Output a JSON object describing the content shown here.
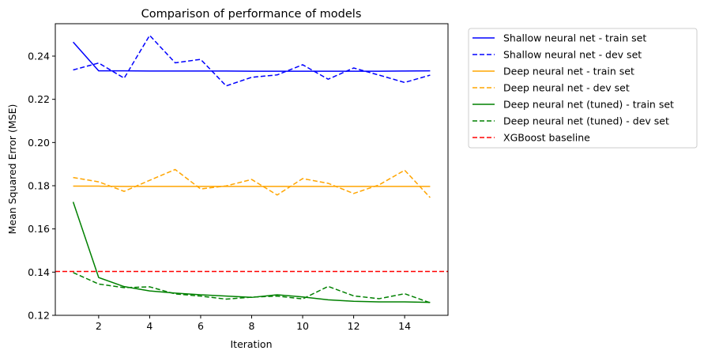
{
  "chart_data": {
    "type": "line",
    "title": "Comparison of performance of models",
    "xlabel": "Iteration",
    "ylabel": "Mean Squared Error (MSE)",
    "xlim": [
      0.3,
      15.7
    ],
    "ylim": [
      0.12,
      0.255
    ],
    "xticks": [
      2,
      4,
      6,
      8,
      10,
      12,
      14
    ],
    "yticks": [
      0.12,
      0.14,
      0.16,
      0.18,
      0.2,
      0.22,
      0.24
    ],
    "ytick_labels": [
      "0.12",
      "0.14",
      "0.16",
      "0.18",
      "0.20",
      "0.22",
      "0.24"
    ],
    "grid": false,
    "legend_position": "outside-right-top",
    "x": [
      1,
      2,
      3,
      4,
      5,
      6,
      7,
      8,
      9,
      10,
      11,
      12,
      13,
      14,
      15
    ],
    "series": [
      {
        "name": "Shallow neural net - train set",
        "color": "#0000ff",
        "dash": "solid",
        "values": [
          0.2465,
          0.2332,
          0.2332,
          0.2331,
          0.2331,
          0.2331,
          0.2331,
          0.233,
          0.233,
          0.233,
          0.233,
          0.233,
          0.233,
          0.2331,
          0.2332
        ]
      },
      {
        "name": "Shallow neural net - dev set",
        "color": "#0000ff",
        "dash": "dashed",
        "values": [
          0.2336,
          0.2368,
          0.2298,
          0.2496,
          0.2369,
          0.2385,
          0.2262,
          0.2302,
          0.2313,
          0.236,
          0.2293,
          0.2345,
          0.2312,
          0.2278,
          0.2312
        ]
      },
      {
        "name": "Deep neural net - train set",
        "color": "#ffa500",
        "dash": "solid",
        "values": [
          0.1798,
          0.1798,
          0.1797,
          0.1797,
          0.1797,
          0.1797,
          0.1797,
          0.1797,
          0.1797,
          0.1797,
          0.1797,
          0.1797,
          0.1797,
          0.1797,
          0.1797
        ]
      },
      {
        "name": "Deep neural net - dev set",
        "color": "#ffa500",
        "dash": "dashed",
        "values": [
          0.1838,
          0.1818,
          0.1774,
          0.1825,
          0.1875,
          0.1785,
          0.1799,
          0.1829,
          0.1757,
          0.1833,
          0.1811,
          0.1764,
          0.1804,
          0.1872,
          0.1745
        ]
      },
      {
        "name": "Deep neural net (tuned) - train set",
        "color": "#008000",
        "dash": "solid",
        "values": [
          0.1725,
          0.1375,
          0.1333,
          0.1313,
          0.1303,
          0.1295,
          0.1289,
          0.1283,
          0.1295,
          0.1285,
          0.1272,
          0.1265,
          0.1262,
          0.1262,
          0.126
        ]
      },
      {
        "name": "Deep neural net (tuned) - dev set",
        "color": "#008000",
        "dash": "dashed",
        "values": [
          0.1398,
          0.1345,
          0.1328,
          0.1332,
          0.1299,
          0.1289,
          0.1275,
          0.1284,
          0.1289,
          0.1276,
          0.1334,
          0.129,
          0.1277,
          0.13,
          0.1258
        ]
      },
      {
        "name": "XGBoost baseline",
        "color": "#ff0000",
        "dash": "dashed",
        "type": "hline",
        "value": 0.1403
      }
    ]
  }
}
